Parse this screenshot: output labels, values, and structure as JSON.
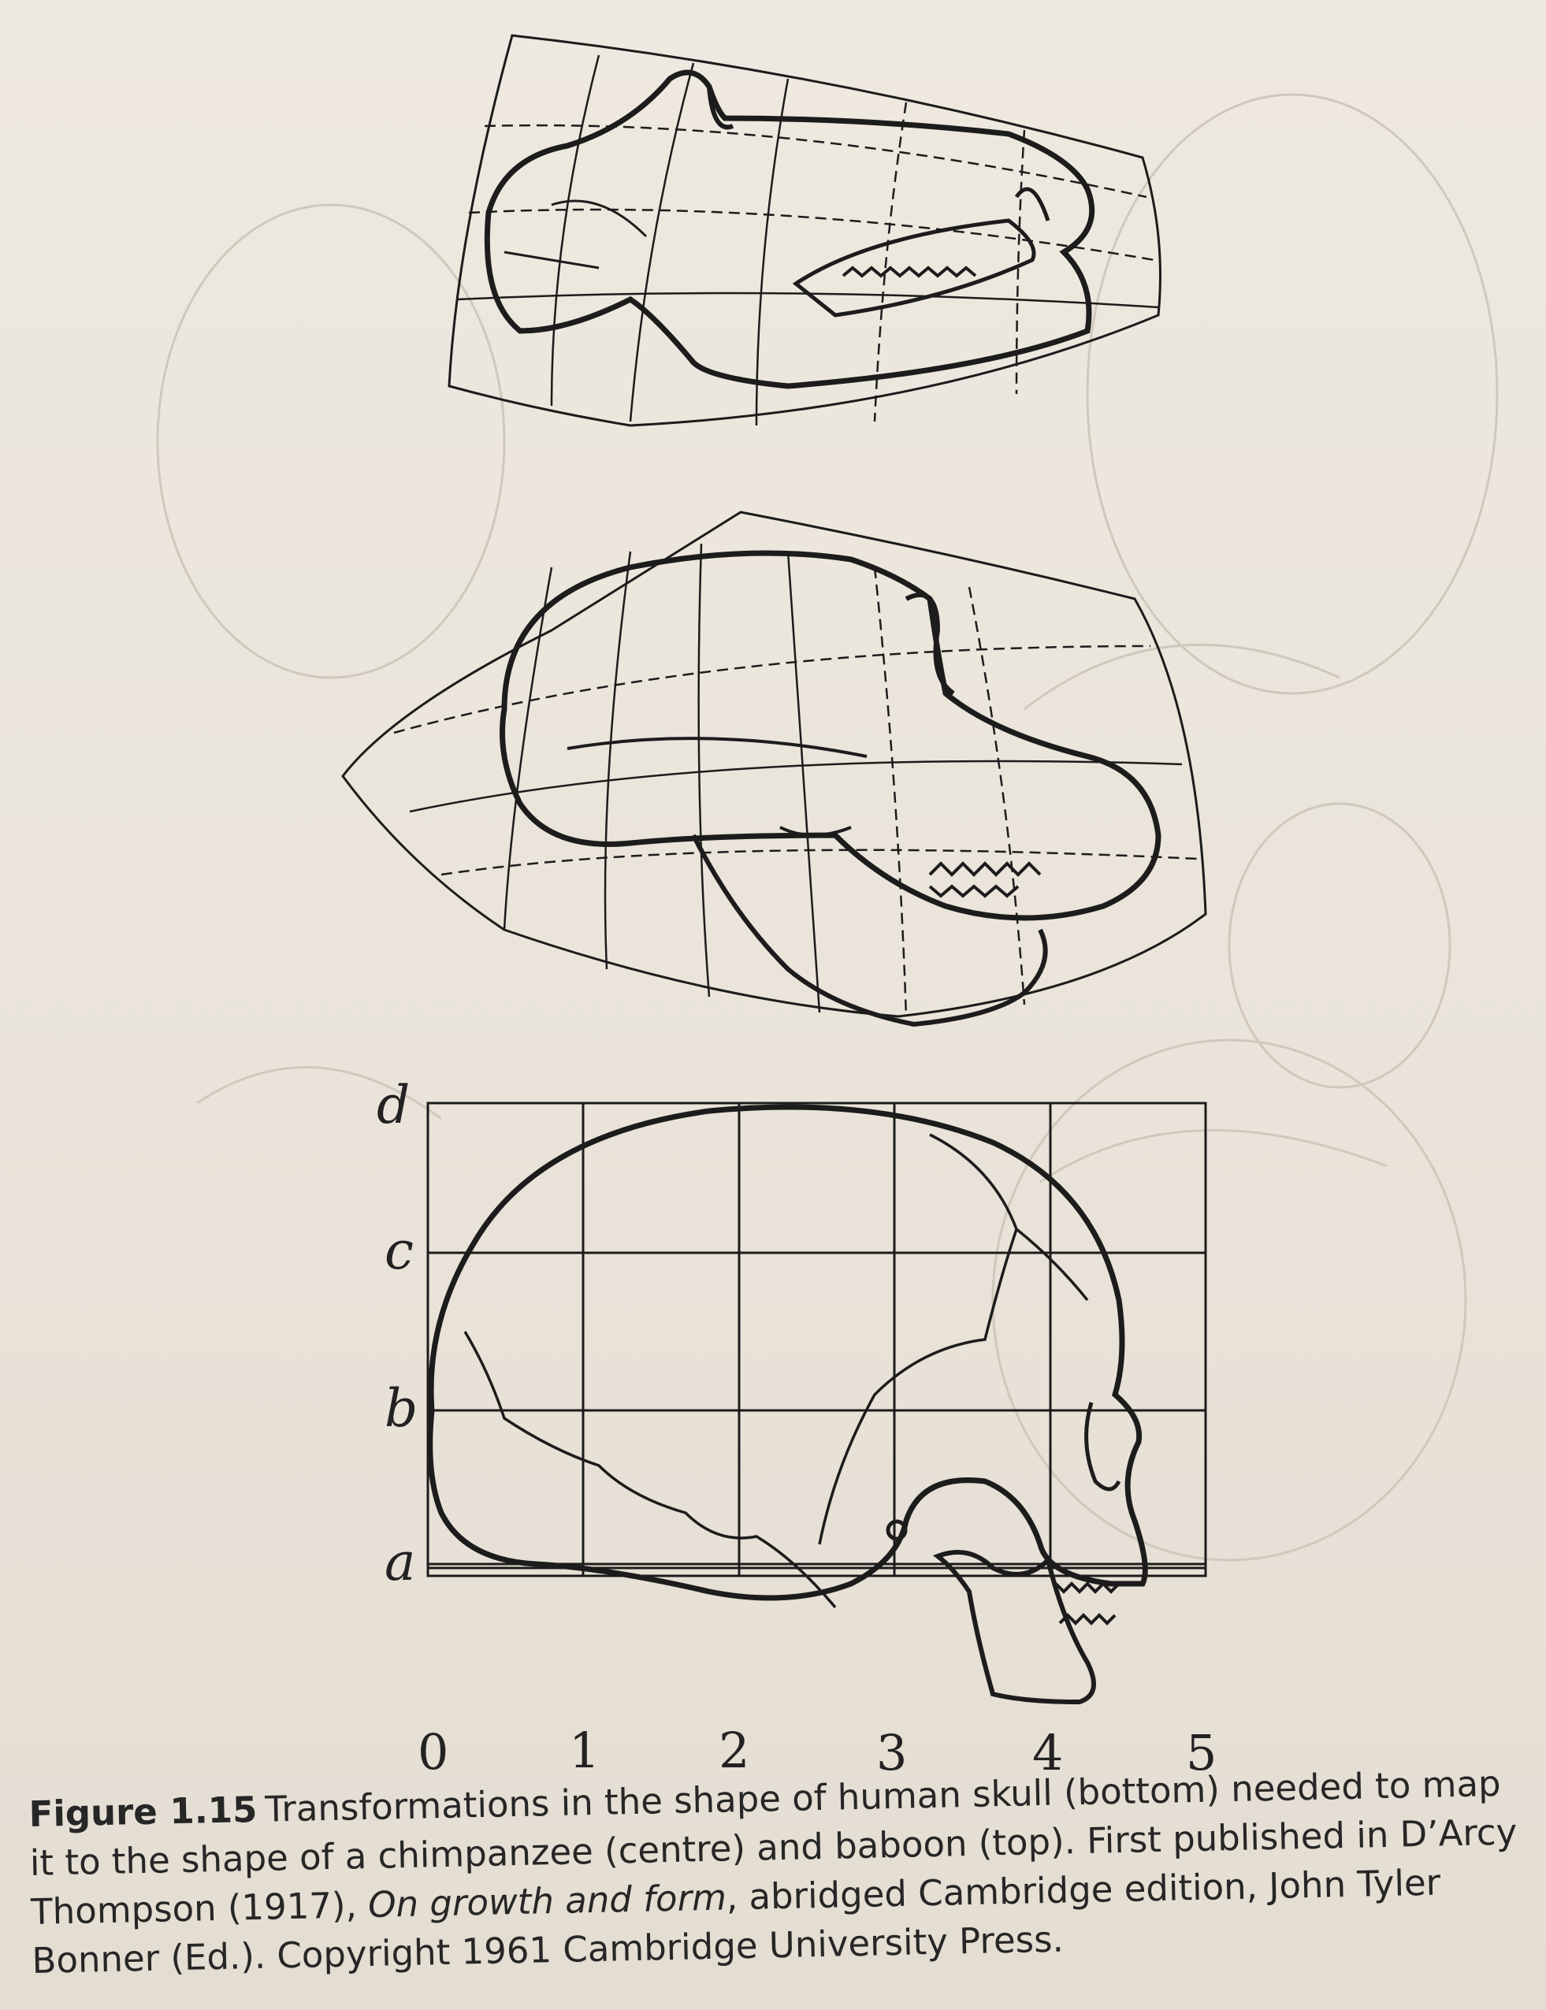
{
  "figure": {
    "grid": {
      "x_labels": [
        "0",
        "1",
        "2",
        "3",
        "4",
        "5"
      ],
      "y_labels": [
        "a",
        "b",
        "c",
        "d"
      ]
    },
    "panels": [
      "baboon-skull",
      "chimpanzee-skull",
      "human-skull"
    ]
  },
  "caption": {
    "label": "Figure 1.15",
    "text_before": "Transformations in the shape of human skull (bottom) needed to map it to the shape of a chimpanzee (centre) and baboon (top). First published in D’Arcy Thompson (1917), ",
    "book_title": "On growth and form",
    "text_after": ", abridged Cambridge edition, John Tyler Bonner (Ed.). Copyright 1961 Cambridge University Press."
  }
}
